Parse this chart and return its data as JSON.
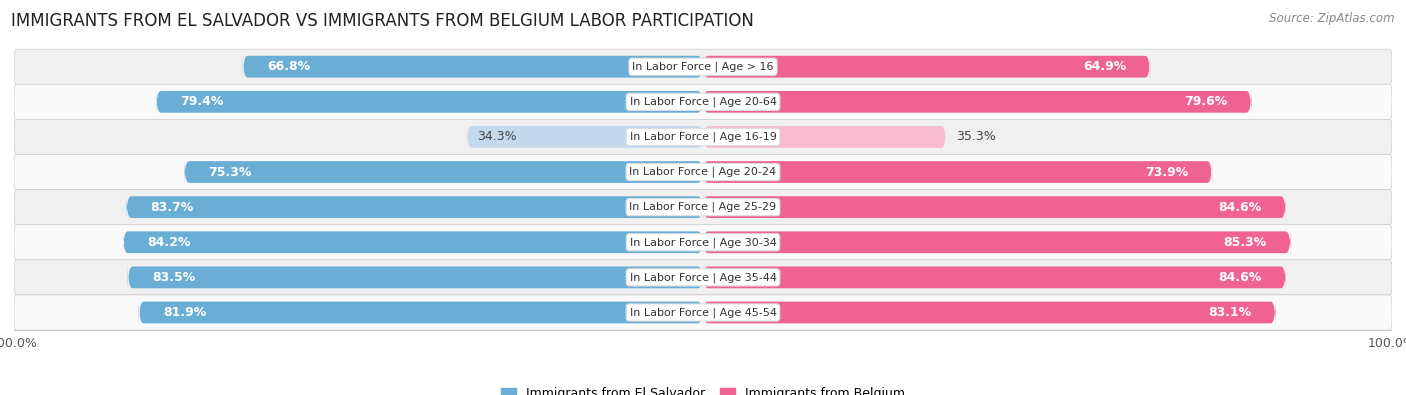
{
  "title": "IMMIGRANTS FROM EL SALVADOR VS IMMIGRANTS FROM BELGIUM LABOR PARTICIPATION",
  "source": "Source: ZipAtlas.com",
  "categories": [
    "In Labor Force | Age > 16",
    "In Labor Force | Age 20-64",
    "In Labor Force | Age 16-19",
    "In Labor Force | Age 20-24",
    "In Labor Force | Age 25-29",
    "In Labor Force | Age 30-34",
    "In Labor Force | Age 35-44",
    "In Labor Force | Age 45-54"
  ],
  "el_salvador_values": [
    66.8,
    79.4,
    34.3,
    75.3,
    83.7,
    84.2,
    83.5,
    81.9
  ],
  "belgium_values": [
    64.9,
    79.6,
    35.3,
    73.9,
    84.6,
    85.3,
    84.6,
    83.1
  ],
  "el_salvador_color_full": "#6aadd5",
  "el_salvador_color_light": "#c5d9ed",
  "belgium_color_full": "#f06292",
  "belgium_color_light": "#f8bbd0",
  "row_bg_even": "#f0f0f0",
  "row_bg_odd": "#fafafa",
  "max_value": 100.0,
  "legend_label_salvador": "Immigrants from El Salvador",
  "legend_label_belgium": "Immigrants from Belgium",
  "title_fontsize": 12,
  "source_fontsize": 8.5,
  "value_fontsize": 9,
  "cat_fontsize": 8,
  "bar_height": 0.62,
  "figsize": [
    14.06,
    3.95
  ],
  "dpi": 100,
  "threshold": 50.0
}
